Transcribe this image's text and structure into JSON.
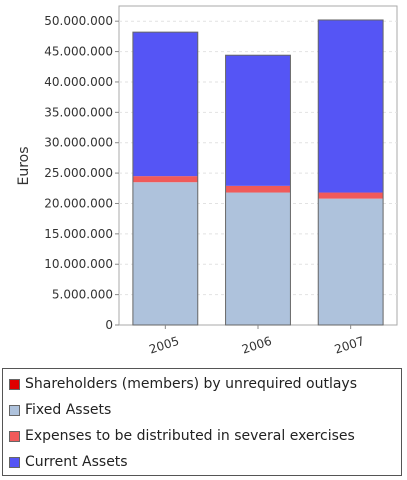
{
  "chart_data": {
    "type": "bar",
    "stacked": true,
    "categories": [
      "2005",
      "2006",
      "2007"
    ],
    "ylabel": "Euros",
    "xlabel": "",
    "title": "",
    "ylim": [
      0,
      52500000
    ],
    "yticks": [
      "0",
      "5.000.000",
      "10.000.000",
      "15.000.000",
      "20.000.000",
      "25.000.000",
      "30.000.000",
      "35.000.000",
      "40.000.000",
      "45.000.000",
      "50.000.000"
    ],
    "grid": true,
    "legend_position": "bottom",
    "series": [
      {
        "name": "Shareholders (members) by unrequired outlays",
        "color": "#e00000",
        "values": [
          0,
          0,
          0
        ]
      },
      {
        "name": "Fixed Assets",
        "color": "#aec2dc",
        "values": [
          23500000,
          21800000,
          20800000
        ]
      },
      {
        "name": "Expenses to be distributed in several exercises",
        "color": "#f05a5a",
        "values": [
          1000000,
          1100000,
          1000000
        ]
      },
      {
        "name": "Current Assets",
        "color": "#5555f5",
        "values": [
          23700000,
          21500000,
          28400000
        ]
      }
    ]
  }
}
